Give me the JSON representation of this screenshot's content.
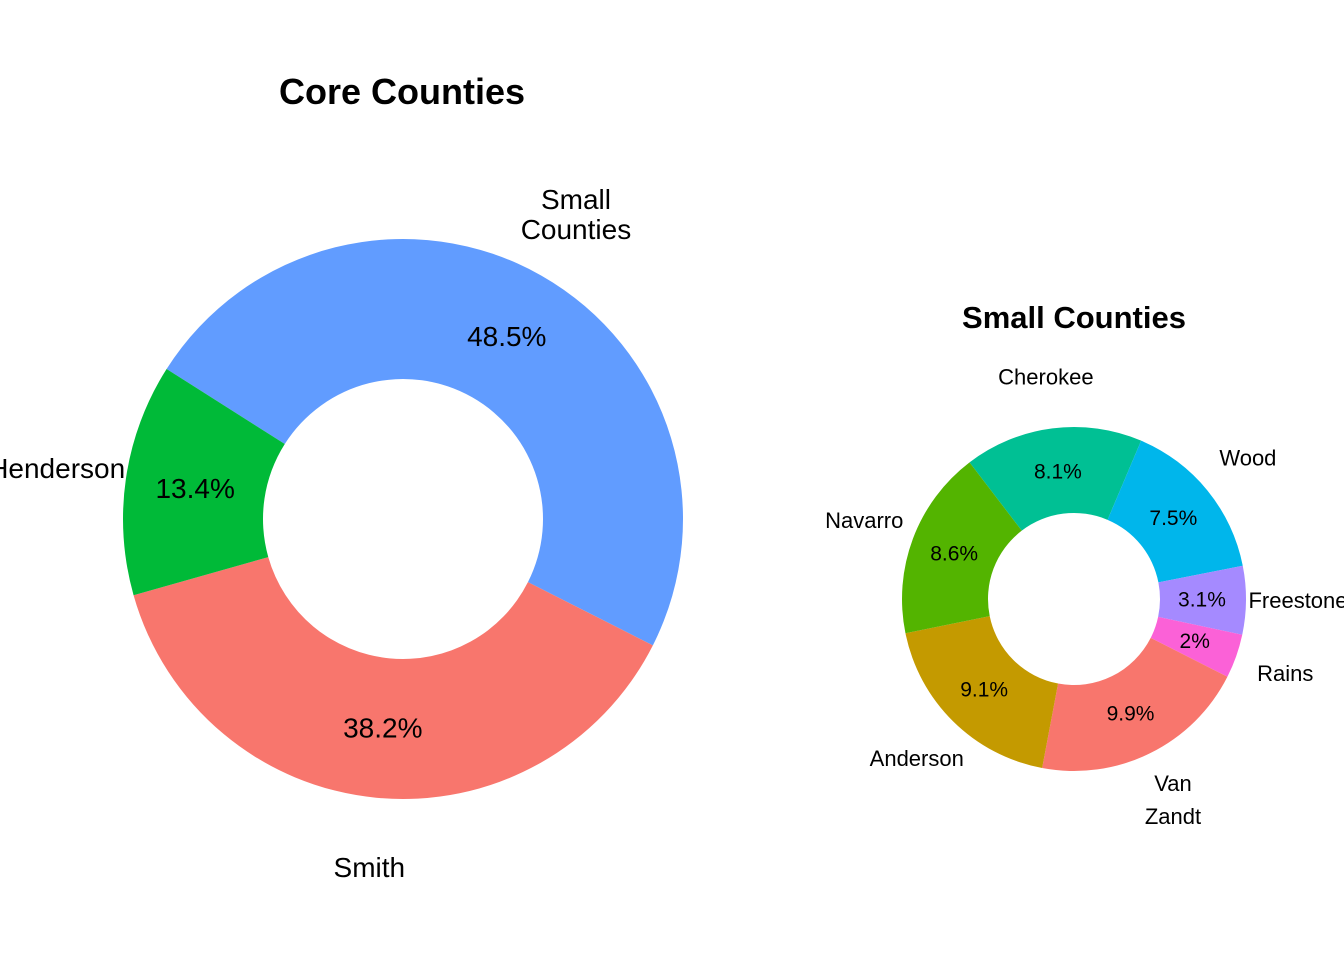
{
  "chart_data": [
    {
      "type": "pie",
      "subtype": "donut",
      "title": "Core Counties",
      "slices": [
        {
          "name": "Small\nCounties",
          "value": 48.5,
          "label": "48.5%",
          "color": "#619CFF"
        },
        {
          "name": "Smith",
          "value": 38.2,
          "label": "38.2%",
          "color": "#F8766D"
        },
        {
          "name": "Henderson",
          "value": 13.4,
          "label": "13.4%",
          "color": "#00BA38"
        }
      ]
    },
    {
      "type": "pie",
      "subtype": "donut",
      "title": "Small Counties",
      "slices": [
        {
          "name": "Cherokee",
          "value": 8.1,
          "label": "8.1%",
          "color": "#00C094"
        },
        {
          "name": "Wood",
          "value": 7.5,
          "label": "7.5%",
          "color": "#00B6EB"
        },
        {
          "name": "Freestone",
          "value": 3.1,
          "label": "3.1%",
          "color": "#A58AFF"
        },
        {
          "name": "Rains",
          "value": 2,
          "label": "2%",
          "color": "#FB61D7"
        },
        {
          "name": "Van\nZandt",
          "value": 9.9,
          "label": "9.9%",
          "color": "#F8766D"
        },
        {
          "name": "Anderson",
          "value": 9.1,
          "label": "9.1%",
          "color": "#C49A00"
        },
        {
          "name": "Navarro",
          "value": 8.6,
          "label": "8.6%",
          "color": "#53B400"
        }
      ]
    }
  ]
}
